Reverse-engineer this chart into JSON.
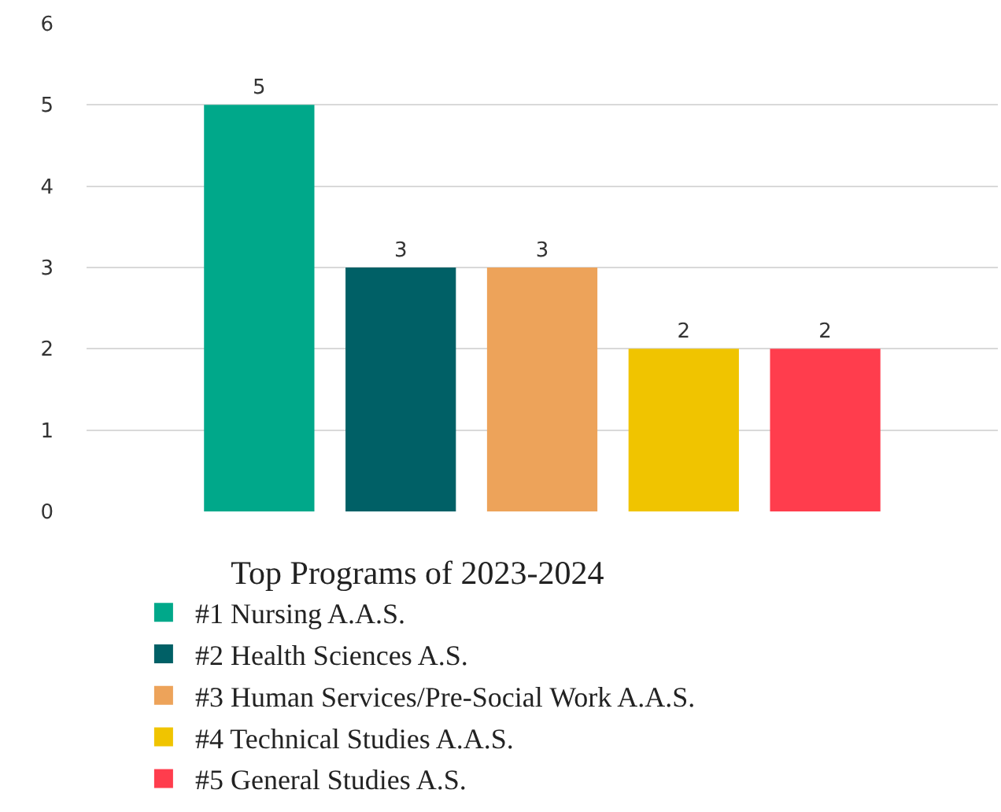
{
  "chart_data": {
    "type": "bar",
    "legend_title": "Top Programs of 2023-2024",
    "categories": [
      null,
      null,
      null,
      null,
      null
    ],
    "series": [
      {
        "name": "#1 Nursing A.A.S.",
        "color": "#00a88a",
        "values": [
          5,
          null,
          null,
          null,
          null
        ]
      },
      {
        "name": "#2 Health Sciences A.S.",
        "color": "#006066",
        "values": [
          null,
          3,
          null,
          null,
          null
        ]
      },
      {
        "name": "#3 Human Services/Pre-Social Work A.A.S.",
        "color": "#eda35a",
        "values": [
          null,
          null,
          3,
          null,
          null
        ]
      },
      {
        "name": "#4 Technical Studies A.A.S.",
        "color": "#f0c400",
        "values": [
          null,
          null,
          null,
          2,
          null
        ]
      },
      {
        "name": "#5 General Studies A.S.",
        "color": "#ff3d4d",
        "values": [
          null,
          null,
          null,
          null,
          2
        ]
      }
    ],
    "ylim": [
      0,
      6
    ],
    "yticks": [
      0,
      1,
      2,
      3,
      4,
      5,
      6
    ],
    "grid": "y",
    "data_labels": true,
    "legend": "bottom"
  }
}
